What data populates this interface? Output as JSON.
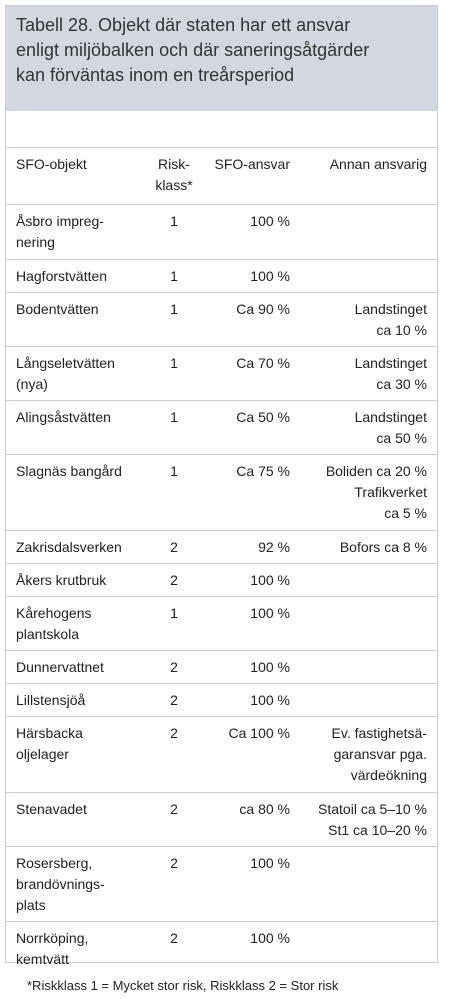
{
  "title_lines": [
    "Tabell 28. Objekt där staten har ett ansvar",
    "enligt miljöbalken och där saneringsåtgärder",
    "kan förväntas inom en treårsperiod"
  ],
  "headers": {
    "object": "SFO-objekt",
    "risk": [
      "Risk-",
      "klass*"
    ],
    "sfo": "SFO-ansvar",
    "other": "Annan ansvarig"
  },
  "rows": [
    {
      "object": [
        "Åsbro impreg-",
        "nering"
      ],
      "risk": "1",
      "sfo": "100 %",
      "other": []
    },
    {
      "object": [
        "Hagforstvätten"
      ],
      "risk": "1",
      "sfo": "100 %",
      "other": []
    },
    {
      "object": [
        "Bodentvätten"
      ],
      "risk": "1",
      "sfo": "Ca 90 %",
      "other": [
        "Landstinget",
        "ca 10 %"
      ]
    },
    {
      "object": [
        "Långseletvätten",
        "(nya)"
      ],
      "risk": "1",
      "sfo": "Ca 70 %",
      "other": [
        "Landstinget",
        "ca 30 %"
      ]
    },
    {
      "object": [
        "Alingsåstvätten"
      ],
      "risk": "1",
      "sfo": "Ca 50 %",
      "other": [
        "Landstinget",
        "ca 50 %"
      ]
    },
    {
      "object": [
        "Slagnäs bangård"
      ],
      "risk": "1",
      "sfo": "Ca 75 %",
      "other": [
        "Boliden ca 20 %",
        "Trafikverket",
        "ca 5 %"
      ]
    },
    {
      "object": [
        "Zakrisdalsverken"
      ],
      "risk": "2",
      "sfo": "92 %",
      "other": [
        "Bofors ca 8 %"
      ]
    },
    {
      "object": [
        "Åkers krutbruk"
      ],
      "risk": "2",
      "sfo": "100 %",
      "other": []
    },
    {
      "object": [
        "Kårehogens",
        "plantskola"
      ],
      "risk": "1",
      "sfo": "100 %",
      "other": []
    },
    {
      "object": [
        "Dunnervattnet"
      ],
      "risk": "2",
      "sfo": "100 %",
      "other": []
    },
    {
      "object": [
        "Lillstensjöå"
      ],
      "risk": "2",
      "sfo": "100 %",
      "other": []
    },
    {
      "object": [
        "Härsbacka",
        "oljelager"
      ],
      "risk": "2",
      "sfo": "Ca 100 %",
      "other": [
        "Ev. fastighetsä-",
        "garansvar pga.",
        "värdeökning"
      ]
    },
    {
      "object": [
        "Stenavadet"
      ],
      "risk": "2",
      "sfo": "ca 80 %",
      "other": [
        "Statoil ca 5–10 %",
        "St1 ca 10–20 %"
      ]
    },
    {
      "object": [
        "Rosersberg,",
        "brandövnings-",
        "plats"
      ],
      "risk": "2",
      "sfo": "100 %",
      "other": []
    },
    {
      "object": [
        "Norrköping,",
        "kemtvätt"
      ],
      "risk": "2",
      "sfo": "100 %",
      "other": []
    }
  ],
  "footnote": "*Riskklass 1 = Mycket stor risk, Riskklass 2 = Stor risk"
}
